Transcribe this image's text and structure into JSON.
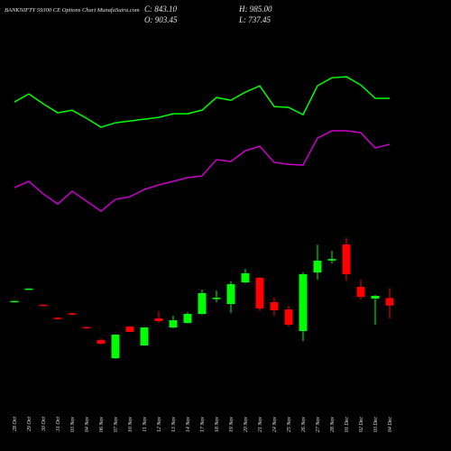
{
  "chart_data": {
    "type": "candlestick",
    "title": "BANKNIFTY 59300 CE Options Chart MunafaSutra.com",
    "ohlc_labels": [
      "C: 843.10",
      "H: 985.00",
      "O: 903.45",
      "L: 737.45"
    ],
    "categories": [
      "28 Oct",
      "29 Oct",
      "30 Oct",
      "31 Oct",
      "03 Nov",
      "04 Nov",
      "06 Nov",
      "07 Nov",
      "10 Nov",
      "11 Nov",
      "12 Nov",
      "13 Nov",
      "14 Nov",
      "17 Nov",
      "18 Nov",
      "19 Nov",
      "20 Nov",
      "21 Nov",
      "24 Nov",
      "25 Nov",
      "26 Nov",
      "27 Nov",
      "28 Nov",
      "01 Dec",
      "02 Dec",
      "03 Dec",
      "04 Dec"
    ],
    "open": [
      875,
      975,
      850,
      745,
      780,
      670,
      566,
      420,
      674,
      522,
      740,
      667,
      703,
      776,
      899,
      856,
      1030,
      1066,
      870,
      812,
      638,
      1109,
      1205,
      1334,
      993,
      899,
      903.45
    ],
    "high": [
      882,
      982,
      853,
      748,
      783,
      673,
      580,
      612,
      677,
      670,
      798,
      761,
      790,
      972,
      965,
      1037,
      1138,
      1073,
      906,
      841,
      1109,
      1334,
      1283,
      1392,
      1051,
      928,
      985
    ],
    "low": [
      873,
      973,
      842,
      732,
      767,
      657,
      530,
      415,
      628,
      522,
      703,
      660,
      700,
      770,
      870,
      783,
      1022,
      798,
      761,
      674,
      558,
      1051,
      1182,
      1044,
      892,
      689,
      737.45
    ],
    "close": [
      880,
      980,
      845,
      735,
      770,
      660,
      537,
      609,
      631,
      667,
      718,
      725,
      776,
      943,
      906,
      1015,
      1102,
      820,
      805,
      689,
      1095,
      1204,
      1217,
      1095,
      913,
      921,
      843.1
    ],
    "up_color": "#00ff00",
    "down_color": "#ff0000",
    "overlays": [
      {
        "color": "#00ff00",
        "values": [
          2480,
          2545,
          2465,
          2393,
          2414,
          2349,
          2277,
          2313,
          2327,
          2342,
          2356,
          2385,
          2385,
          2414,
          2516,
          2494,
          2559,
          2610,
          2443,
          2436,
          2378,
          2610,
          2675,
          2683,
          2617,
          2509,
          2509
        ]
      },
      {
        "color": "#cc00cc",
        "values": [
          1791,
          1842,
          1740,
          1660,
          1762,
          1682,
          1602,
          1697,
          1718,
          1776,
          1813,
          1842,
          1871,
          1885,
          2016,
          2001,
          2088,
          2124,
          1994,
          1979,
          1972,
          2190,
          2248,
          2248,
          2233,
          2110,
          2139
        ]
      }
    ],
    "ylim": [
      0,
      3300
    ]
  }
}
